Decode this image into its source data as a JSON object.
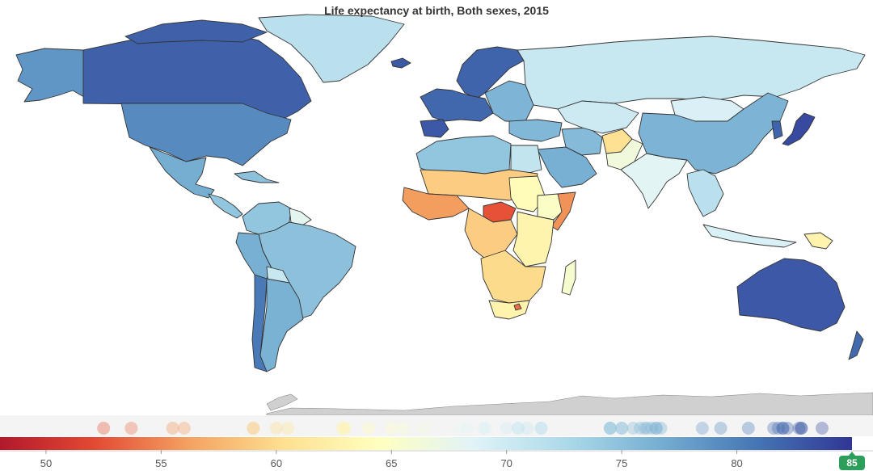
{
  "title": "Life expectancy at birth, Both sexes, 2015",
  "colors": {
    "scale": [
      "#b2182b",
      "#e34a33",
      "#f4a261",
      "#fee090",
      "#ffffbf",
      "#e0f3f8",
      "#abd9e9",
      "#74add1",
      "#4575b4",
      "#313695"
    ],
    "missing": "#d0d0d0",
    "border": "#333333",
    "badge": "#2e9e5b"
  },
  "legend": {
    "min": 48,
    "max": 85,
    "ticks": [
      "50",
      "55",
      "60",
      "65",
      "70",
      "75",
      "80"
    ],
    "tick_values": [
      50,
      55,
      60,
      65,
      70,
      75,
      80
    ],
    "current_value_label": "85",
    "current_value": 85
  },
  "chart_data": {
    "type": "choropleth",
    "title": "Life expectancy at birth, Both sexes, 2015",
    "value_range": [
      48,
      85
    ],
    "regions": [
      {
        "region": "Alaska",
        "value": 78.5
      },
      {
        "region": "Canada",
        "value": 82.2
      },
      {
        "region": "Greenland",
        "value": 71.5
      },
      {
        "region": "United States",
        "value": 79.3
      },
      {
        "region": "Mexico",
        "value": 76.7
      },
      {
        "region": "Central America",
        "value": 74.5
      },
      {
        "region": "Caribbean",
        "value": 75
      },
      {
        "region": "Colombia / Venezuela",
        "value": 74.5
      },
      {
        "region": "Guianas",
        "value": 68
      },
      {
        "region": "Brazil",
        "value": 75
      },
      {
        "region": "Peru / Ecuador",
        "value": 76.5
      },
      {
        "region": "Bolivia",
        "value": 70.5
      },
      {
        "region": "Chile",
        "value": 80.5
      },
      {
        "region": "Argentina",
        "value": 76.3
      },
      {
        "region": "Iceland",
        "value": 82.7
      },
      {
        "region": "Northern Europe",
        "value": 82
      },
      {
        "region": "Western Europe",
        "value": 81.8
      },
      {
        "region": "Iberia",
        "value": 82.8
      },
      {
        "region": "Eastern Europe",
        "value": 76
      },
      {
        "region": "Russia",
        "value": 70.5
      },
      {
        "region": "Turkey / Middle East",
        "value": 75.8
      },
      {
        "region": "Arabian Peninsula",
        "value": 76.5
      },
      {
        "region": "Iran",
        "value": 75.5
      },
      {
        "region": "Central Asia",
        "value": 70
      },
      {
        "region": "Afghanistan",
        "value": 60.5
      },
      {
        "region": "Pakistan",
        "value": 66.4
      },
      {
        "region": "India",
        "value": 68.3
      },
      {
        "region": "Mongolia",
        "value": 69
      },
      {
        "region": "China",
        "value": 76.1
      },
      {
        "region": "Japan",
        "value": 83.7
      },
      {
        "region": "Korea",
        "value": 82
      },
      {
        "region": "Southeast Asia",
        "value": 71.5
      },
      {
        "region": "Indonesia",
        "value": 69.1
      },
      {
        "region": "Papua New Guinea",
        "value": 62.9
      },
      {
        "region": "Australia",
        "value": 82.8
      },
      {
        "region": "New Zealand",
        "value": 81.6
      },
      {
        "region": "North Africa",
        "value": 74.5
      },
      {
        "region": "Egypt",
        "value": 70.9
      },
      {
        "region": "Sahel",
        "value": 59
      },
      {
        "region": "West Africa",
        "value": 56
      },
      {
        "region": "Central African Republic",
        "value": 52.5
      },
      {
        "region": "Sudan",
        "value": 64
      },
      {
        "region": "Ethiopia",
        "value": 65
      },
      {
        "region": "Somalia",
        "value": 55.5
      },
      {
        "region": "Central Africa",
        "value": 59
      },
      {
        "region": "East Africa",
        "value": 63
      },
      {
        "region": "Southern Africa",
        "value": 60
      },
      {
        "region": "South Africa",
        "value": 62.9
      },
      {
        "region": "Lesotho",
        "value": 53.7
      },
      {
        "region": "Madagascar",
        "value": 65.5
      }
    ]
  }
}
